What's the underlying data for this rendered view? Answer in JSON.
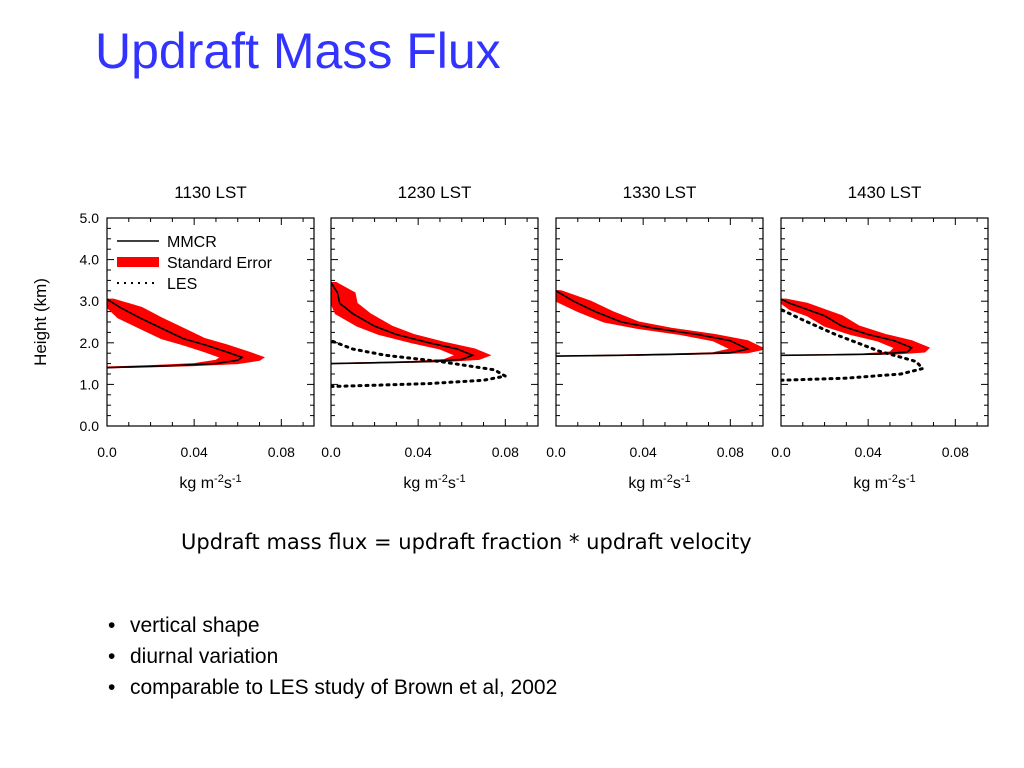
{
  "slide": {
    "title": "Updraft Mass Flux",
    "equation": "Updraft mass flux = updraft fraction * updraft velocity",
    "bullets": [
      "vertical shape",
      "diurnal variation",
      "comparable to LES study of Brown et al, 2002"
    ]
  },
  "colors": {
    "title": "#3333ff",
    "mmcr": "#000000",
    "standard_error": "#ff0000",
    "les": "#000000"
  },
  "chart_data": [
    {
      "type": "line",
      "title": "1130 LST",
      "xlabel": "kg m-2s-1",
      "ylabel": "Height (km)",
      "xlim": [
        0.0,
        0.095
      ],
      "ylim": [
        0.0,
        5.0
      ],
      "xticks": [
        "0.0",
        "0.04",
        "0.08"
      ],
      "yticks": [
        "0.0",
        "1.0",
        "2.0",
        "3.0",
        "4.0",
        "5.0"
      ],
      "legend": {
        "position": "top-left",
        "entries": [
          "MMCR",
          "Standard Error",
          "LES"
        ]
      },
      "series": [
        {
          "name": "MMCR",
          "x": [
            0.0,
            0.01,
            0.03,
            0.05,
            0.06,
            0.062,
            0.055,
            0.045,
            0.035,
            0.025,
            0.015,
            0.006,
            0.0
          ],
          "y": [
            1.4,
            1.42,
            1.45,
            1.5,
            1.58,
            1.65,
            1.78,
            1.95,
            2.1,
            2.35,
            2.6,
            2.85,
            3.05
          ]
        },
        {
          "name": "Standard Error",
          "half_width": 0.01
        }
      ]
    },
    {
      "type": "line",
      "title": "1230 LST",
      "xlabel": "kg m-2s-1",
      "xlim": [
        0.0,
        0.095
      ],
      "ylim": [
        0.0,
        5.0
      ],
      "xticks": [
        "0.0",
        "0.04",
        "0.08"
      ],
      "series": [
        {
          "name": "MMCR",
          "x": [
            0.0,
            0.02,
            0.045,
            0.06,
            0.065,
            0.058,
            0.045,
            0.03,
            0.02,
            0.01,
            0.004,
            0.003,
            0.0
          ],
          "y": [
            1.5,
            1.52,
            1.55,
            1.6,
            1.7,
            1.85,
            2.0,
            2.2,
            2.4,
            2.7,
            2.95,
            3.2,
            3.45
          ]
        },
        {
          "name": "Standard Error",
          "half_width": 0.008
        },
        {
          "name": "LES",
          "x": [
            0.0,
            0.02,
            0.045,
            0.07,
            0.08,
            0.075,
            0.05,
            0.025,
            0.01,
            0.0
          ],
          "y": [
            0.95,
            0.98,
            1.02,
            1.1,
            1.2,
            1.35,
            1.55,
            1.7,
            1.85,
            2.05
          ]
        }
      ]
    },
    {
      "type": "line",
      "title": "1330 LST",
      "xlabel": "kg m-2s-1",
      "xlim": [
        0.0,
        0.095
      ],
      "ylim": [
        0.0,
        5.0
      ],
      "xticks": [
        "0.0",
        "0.04",
        "0.08"
      ],
      "series": [
        {
          "name": "MMCR",
          "x": [
            0.0,
            0.03,
            0.06,
            0.08,
            0.088,
            0.08,
            0.065,
            0.045,
            0.03,
            0.018,
            0.008,
            0.0
          ],
          "y": [
            1.68,
            1.7,
            1.73,
            1.76,
            1.85,
            2.05,
            2.2,
            2.35,
            2.5,
            2.75,
            3.0,
            3.25
          ]
        },
        {
          "name": "Standard Error",
          "half_width": 0.008
        }
      ]
    },
    {
      "type": "line",
      "title": "1430 LST",
      "xlabel": "kg m-2s-1",
      "xlim": [
        0.0,
        0.095
      ],
      "ylim": [
        0.0,
        5.0
      ],
      "xticks": [
        "0.0",
        "0.04",
        "0.08"
      ],
      "series": [
        {
          "name": "MMCR",
          "x": [
            0.0,
            0.02,
            0.045,
            0.058,
            0.06,
            0.052,
            0.04,
            0.028,
            0.02,
            0.012,
            0.004,
            0.0
          ],
          "y": [
            1.7,
            1.71,
            1.73,
            1.78,
            1.88,
            2.05,
            2.2,
            2.4,
            2.65,
            2.8,
            2.95,
            3.05
          ]
        },
        {
          "name": "Standard Error",
          "half_width": 0.008
        },
        {
          "name": "LES",
          "x": [
            0.0,
            0.03,
            0.055,
            0.065,
            0.062,
            0.045,
            0.025,
            0.01,
            0.0
          ],
          "y": [
            1.1,
            1.15,
            1.25,
            1.38,
            1.55,
            1.8,
            2.2,
            2.55,
            2.8
          ]
        }
      ]
    }
  ]
}
